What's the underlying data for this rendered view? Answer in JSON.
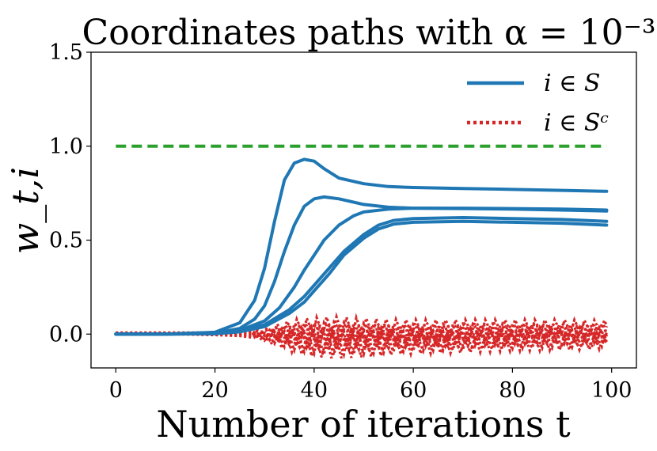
{
  "chart_data": {
    "type": "line",
    "title": "Coordinates paths with α = 10⁻³",
    "xlabel": "Number of iterations t",
    "ylabel": "w_t,i",
    "xlim": [
      -5,
      105
    ],
    "ylim": [
      -0.18,
      1.5
    ],
    "xticks": [
      0,
      20,
      40,
      60,
      80,
      100
    ],
    "yticks": [
      0.0,
      0.5,
      1.0,
      1.5
    ],
    "xtick_labels": [
      "0",
      "20",
      "40",
      "60",
      "80",
      "100"
    ],
    "ytick_labels": [
      "0.0",
      "0.5",
      "1.0",
      "1.5"
    ],
    "grid": false,
    "legend_position": "top-right",
    "legend": [
      {
        "label": "i ∈ S",
        "style": "solid",
        "color": "#1f77b4"
      },
      {
        "label": "i ∈ Sᶜ",
        "style": "dotted",
        "color": "#d62728"
      }
    ],
    "reference_line": {
      "y": 1.0,
      "x_range": [
        0,
        99
      ],
      "style": "dashed",
      "color": "#2ca02c"
    },
    "support_series": [
      {
        "x": [
          0,
          10,
          20,
          25,
          28,
          30,
          32,
          34,
          36,
          38,
          40,
          42,
          45,
          50,
          55,
          60,
          70,
          80,
          90,
          99
        ],
        "y": [
          0,
          0,
          0.01,
          0.06,
          0.18,
          0.35,
          0.6,
          0.82,
          0.91,
          0.93,
          0.92,
          0.88,
          0.83,
          0.8,
          0.785,
          0.78,
          0.775,
          0.77,
          0.765,
          0.76
        ]
      },
      {
        "x": [
          0,
          10,
          20,
          25,
          28,
          30,
          32,
          34,
          36,
          38,
          40,
          42,
          45,
          50,
          55,
          60,
          70,
          80,
          90,
          99
        ],
        "y": [
          0,
          0,
          0.005,
          0.03,
          0.08,
          0.15,
          0.28,
          0.44,
          0.58,
          0.68,
          0.72,
          0.73,
          0.72,
          0.69,
          0.675,
          0.67,
          0.668,
          0.665,
          0.66,
          0.655
        ]
      },
      {
        "x": [
          0,
          10,
          20,
          25,
          30,
          33,
          36,
          38,
          40,
          42,
          45,
          48,
          50,
          55,
          60,
          70,
          80,
          90,
          99
        ],
        "y": [
          0,
          0,
          0.003,
          0.02,
          0.07,
          0.14,
          0.25,
          0.34,
          0.42,
          0.5,
          0.58,
          0.63,
          0.65,
          0.665,
          0.67,
          0.67,
          0.668,
          0.665,
          0.66
        ]
      },
      {
        "x": [
          0,
          10,
          20,
          25,
          30,
          35,
          38,
          40,
          43,
          46,
          50,
          53,
          56,
          60,
          70,
          80,
          90,
          99
        ],
        "y": [
          0,
          0,
          0.002,
          0.015,
          0.05,
          0.13,
          0.2,
          0.26,
          0.35,
          0.44,
          0.53,
          0.58,
          0.605,
          0.615,
          0.62,
          0.615,
          0.61,
          0.6
        ]
      },
      {
        "x": [
          0,
          10,
          20,
          25,
          30,
          35,
          38,
          40,
          43,
          46,
          50,
          53,
          56,
          60,
          70,
          80,
          90,
          99
        ],
        "y": [
          0,
          0,
          0.002,
          0.012,
          0.04,
          0.11,
          0.17,
          0.23,
          0.32,
          0.42,
          0.51,
          0.56,
          0.585,
          0.595,
          0.6,
          0.595,
          0.59,
          0.58
        ]
      }
    ],
    "complement_band": {
      "x": [
        0,
        10,
        20,
        25,
        28,
        30,
        33,
        36,
        40,
        44,
        48,
        52,
        56,
        60,
        70,
        80,
        90,
        99
      ],
      "upper": [
        0.008,
        0.008,
        0.008,
        0.012,
        0.02,
        0.03,
        0.06,
        0.08,
        0.09,
        0.095,
        0.09,
        0.085,
        0.08,
        0.078,
        0.078,
        0.078,
        0.078,
        0.075
      ],
      "lower": [
        0.0,
        0.0,
        -0.005,
        -0.01,
        -0.02,
        -0.04,
        -0.07,
        -0.1,
        -0.12,
        -0.13,
        -0.125,
        -0.12,
        -0.11,
        -0.105,
        -0.1,
        -0.09,
        -0.085,
        -0.08
      ]
    }
  }
}
